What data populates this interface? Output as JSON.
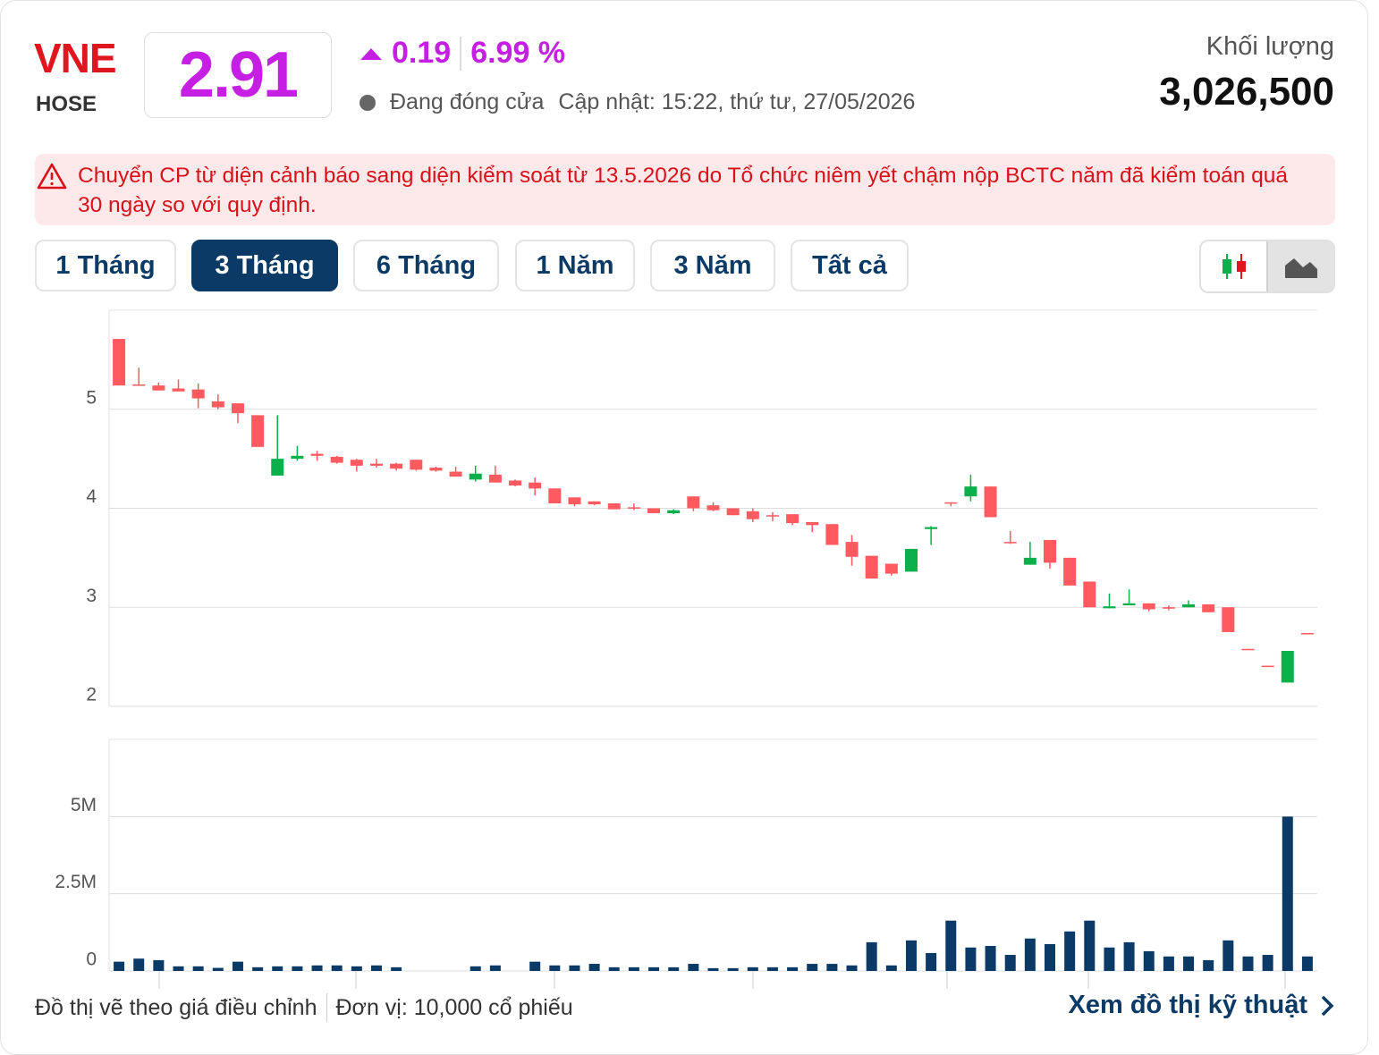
{
  "header": {
    "symbol": "VNE",
    "exchange": "HOSE",
    "price": "2.91",
    "change": "0.19",
    "change_pct": "6.99 %",
    "status": "Đang đóng cửa",
    "updated": "Cập nhật: 15:22, thứ tư, 27/05/2026",
    "volume_label": "Khối lượng",
    "volume": "3,026,500"
  },
  "alert": {
    "text": "Chuyển CP từ diện cảnh báo sang diện kiểm soát từ 13.5.2026 do Tổ chức niêm yết chậm nộp BCTC năm đã kiểm toán quá 30 ngày so với quy định."
  },
  "tabs": {
    "items": [
      "1 Tháng",
      "3 Tháng",
      "6 Tháng",
      "1 Năm",
      "3 Năm",
      "Tất cả"
    ],
    "active": 1
  },
  "chart_data": [
    {
      "type": "candlestick",
      "up_color": "#0bb04a",
      "down_color": "#ff5a5f",
      "grid": true,
      "categories": [
        null,
        null,
        null,
        null,
        null,
        null,
        null,
        null,
        null,
        null,
        null,
        null,
        null,
        null,
        null,
        null,
        null,
        null,
        null,
        null,
        null,
        null,
        null,
        null,
        null,
        null,
        null,
        null,
        null,
        null,
        null,
        null,
        null,
        null,
        null,
        null,
        null,
        null,
        null,
        null,
        null,
        null,
        null,
        null,
        null,
        null,
        null,
        null,
        null,
        null,
        null,
        null,
        null,
        null,
        null,
        null,
        null,
        null,
        null,
        null,
        null
      ],
      "open": [
        5.71,
        5.25,
        5.24,
        5.21,
        5.2,
        5.08,
        5.06,
        4.94,
        4.33,
        4.5,
        4.55,
        4.52,
        4.49,
        4.45,
        4.45,
        4.49,
        4.41,
        4.37,
        4.29,
        4.34,
        4.28,
        4.26,
        4.2,
        4.11,
        4.07,
        4.05,
        4.01,
        4.0,
        3.95,
        4.12,
        4.03,
        4.0,
        3.97,
        3.93,
        3.94,
        3.86,
        3.84,
        3.66,
        3.52,
        3.44,
        3.36,
        3.79,
        4.06,
        4.12,
        4.22,
        3.66,
        3.43,
        3.68,
        3.5,
        3.26,
        2.99,
        3.02,
        3.04,
        3.0,
        3.0,
        3.03,
        3.0,
        2.58,
        2.41,
        2.24,
        2.74
      ],
      "high": [
        5.71,
        5.42,
        5.27,
        5.3,
        5.26,
        5.15,
        5.06,
        4.94,
        4.94,
        4.63,
        4.58,
        4.53,
        4.5,
        4.5,
        4.46,
        4.49,
        4.42,
        4.42,
        4.43,
        4.43,
        4.29,
        4.31,
        4.2,
        4.11,
        4.07,
        4.05,
        4.05,
        4.0,
        3.99,
        4.12,
        4.06,
        4.0,
        4.0,
        3.96,
        3.94,
        3.86,
        3.84,
        3.73,
        3.52,
        3.44,
        3.59,
        3.82,
        4.06,
        4.34,
        4.22,
        3.77,
        3.66,
        3.68,
        3.5,
        3.26,
        3.14,
        3.18,
        3.04,
        3.02,
        3.07,
        3.03,
        3.0,
        2.58,
        2.41,
        2.56,
        2.74
      ],
      "low": [
        5.24,
        5.24,
        5.19,
        5.18,
        5.01,
        5.0,
        4.86,
        4.62,
        4.33,
        4.48,
        4.48,
        4.45,
        4.37,
        4.41,
        4.38,
        4.38,
        4.37,
        4.32,
        4.27,
        4.26,
        4.22,
        4.13,
        4.05,
        4.02,
        4.03,
        3.99,
        3.98,
        3.95,
        3.94,
        3.97,
        3.97,
        3.93,
        3.86,
        3.87,
        3.83,
        3.76,
        3.63,
        3.42,
        3.29,
        3.32,
        3.36,
        3.63,
        4.02,
        4.07,
        3.91,
        3.64,
        3.43,
        3.39,
        3.22,
        3.0,
        2.99,
        3.02,
        2.96,
        2.97,
        3.0,
        2.95,
        2.75,
        2.57,
        2.4,
        2.24,
        2.73
      ],
      "close": [
        5.24,
        5.25,
        5.19,
        5.18,
        5.11,
        5.02,
        4.96,
        4.62,
        4.5,
        4.53,
        4.53,
        4.46,
        4.43,
        4.43,
        4.4,
        4.39,
        4.38,
        4.32,
        4.35,
        4.26,
        4.23,
        4.2,
        4.05,
        4.04,
        4.04,
        3.99,
        4.0,
        3.95,
        3.98,
        4.0,
        3.98,
        3.93,
        3.89,
        3.92,
        3.85,
        3.83,
        3.63,
        3.51,
        3.29,
        3.34,
        3.59,
        3.81,
        4.05,
        4.22,
        3.91,
        3.65,
        3.5,
        3.45,
        3.22,
        3.0,
        3.01,
        3.04,
        2.98,
        2.99,
        3.03,
        2.95,
        2.75,
        2.57,
        2.4,
        2.56,
        2.73
      ],
      "ylim": [
        2,
        6
      ],
      "yticks": [
        2,
        3,
        4,
        5
      ]
    },
    {
      "type": "bar",
      "color": "#0b3a66",
      "grid": true,
      "categories": [
        null,
        null,
        null,
        null,
        null,
        null,
        null,
        null,
        null,
        null,
        null,
        null,
        null,
        null,
        null,
        null,
        null,
        null,
        null,
        null,
        null,
        null,
        null,
        null,
        null,
        null,
        null,
        null,
        null,
        null,
        null,
        null,
        null,
        null,
        null,
        null,
        null,
        null,
        null,
        null,
        null,
        null,
        null,
        null,
        null,
        null,
        null,
        null,
        null,
        null,
        null,
        null,
        null,
        null,
        null,
        null,
        null,
        null,
        null,
        null,
        null
      ],
      "values": [
        300000,
        400000,
        350000,
        150000,
        150000,
        100000,
        300000,
        120000,
        150000,
        150000,
        180000,
        180000,
        150000,
        180000,
        120000,
        0,
        0,
        0,
        150000,
        180000,
        0,
        300000,
        180000,
        180000,
        230000,
        120000,
        120000,
        120000,
        120000,
        230000,
        90000,
        90000,
        120000,
        120000,
        120000,
        230000,
        230000,
        180000,
        930000,
        180000,
        990000,
        580000,
        1630000,
        760000,
        810000,
        520000,
        1050000,
        870000,
        1280000,
        1630000,
        760000,
        930000,
        640000,
        470000,
        470000,
        350000,
        990000,
        470000,
        520000,
        5000000,
        470000
      ],
      "ylim": [
        0,
        7500000
      ],
      "yticks": [
        0,
        {
          "value": 2500000,
          "label": "2.5M"
        },
        {
          "value": 5000000,
          "label": "5M"
        }
      ]
    }
  ],
  "footer": {
    "note": "Đồ thị vẽ theo giá điều chỉnh",
    "unit": "Đơn vị: 10,000 cổ phiếu",
    "link": "Xem đồ thị kỹ thuật"
  }
}
